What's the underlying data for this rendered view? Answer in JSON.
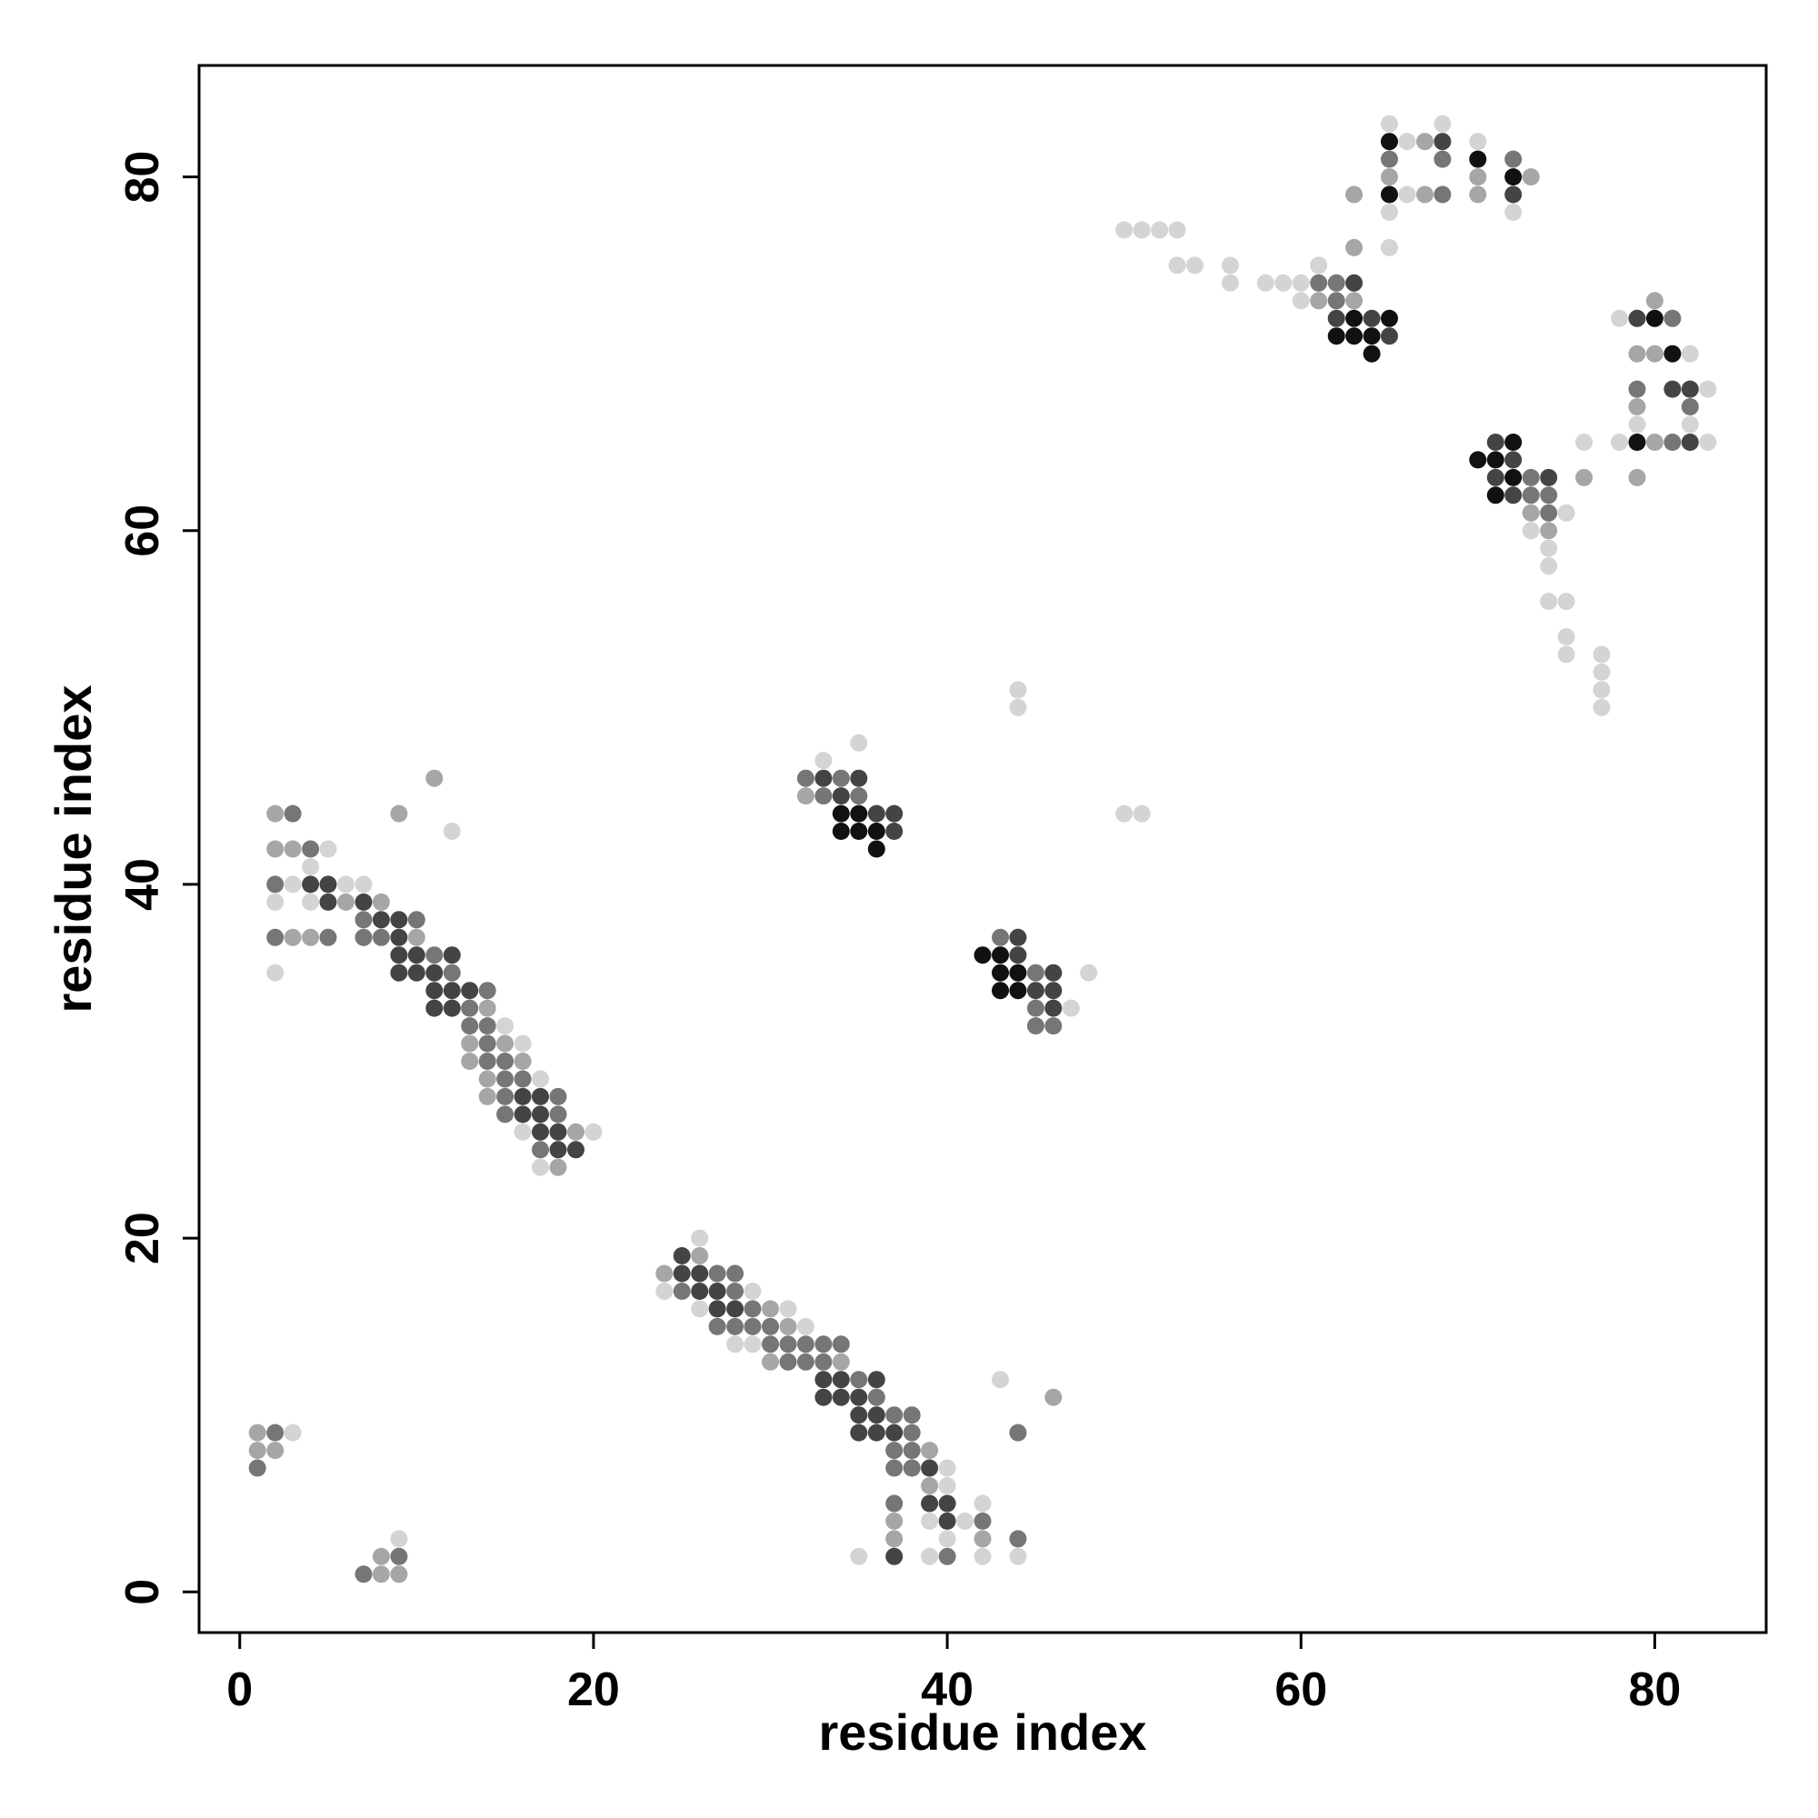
{
  "chart_data": {
    "type": "scatter",
    "title": "",
    "xlabel": "residue index",
    "ylabel": "residue index",
    "xlim": [
      -2.3,
      86.3
    ],
    "ylim": [
      -2.3,
      86.3
    ],
    "xticks": [
      0,
      20,
      40,
      60,
      80
    ],
    "yticks": [
      0,
      20,
      40,
      60,
      80
    ],
    "grid": false,
    "legend": "none",
    "marker_color": "#000000",
    "point_encoding": "[x, y, shade] where shade 1 = light gray ... 5 = black",
    "shade_colors": [
      "#d4d4d4",
      "#a6a6a6",
      "#767676",
      "#444444",
      "#111111"
    ],
    "points": [
      [
        1,
        9,
        2
      ],
      [
        2,
        9,
        3
      ],
      [
        3,
        9,
        1
      ],
      [
        1,
        8,
        2
      ],
      [
        2,
        8,
        2
      ],
      [
        1,
        7,
        3
      ],
      [
        7,
        1,
        3
      ],
      [
        8,
        1,
        2
      ],
      [
        9,
        1,
        2
      ],
      [
        8,
        2,
        2
      ],
      [
        9,
        2,
        3
      ],
      [
        9,
        3,
        1
      ],
      [
        2,
        44,
        2
      ],
      [
        3,
        44,
        3
      ],
      [
        2,
        42,
        2
      ],
      [
        3,
        42,
        2
      ],
      [
        4,
        42,
        3
      ],
      [
        5,
        42,
        1
      ],
      [
        4,
        41,
        1
      ],
      [
        2,
        40,
        3
      ],
      [
        3,
        40,
        1
      ],
      [
        4,
        40,
        4
      ],
      [
        5,
        40,
        4
      ],
      [
        6,
        40,
        1
      ],
      [
        7,
        40,
        1
      ],
      [
        2,
        39,
        1
      ],
      [
        4,
        39,
        1
      ],
      [
        5,
        39,
        4
      ],
      [
        6,
        39,
        2
      ],
      [
        7,
        39,
        4
      ],
      [
        8,
        39,
        2
      ],
      [
        7,
        38,
        3
      ],
      [
        8,
        38,
        4
      ],
      [
        9,
        38,
        4
      ],
      [
        10,
        38,
        3
      ],
      [
        2,
        37,
        3
      ],
      [
        3,
        37,
        2
      ],
      [
        4,
        37,
        2
      ],
      [
        5,
        37,
        3
      ],
      [
        7,
        37,
        3
      ],
      [
        8,
        37,
        3
      ],
      [
        9,
        37,
        4
      ],
      [
        10,
        37,
        2
      ],
      [
        9,
        36,
        4
      ],
      [
        10,
        36,
        4
      ],
      [
        11,
        36,
        3
      ],
      [
        12,
        36,
        4
      ],
      [
        2,
        35,
        1
      ],
      [
        9,
        35,
        4
      ],
      [
        10,
        35,
        4
      ],
      [
        11,
        35,
        4
      ],
      [
        12,
        35,
        3
      ],
      [
        11,
        34,
        4
      ],
      [
        12,
        34,
        4
      ],
      [
        13,
        34,
        4
      ],
      [
        14,
        34,
        3
      ],
      [
        11,
        33,
        4
      ],
      [
        12,
        33,
        4
      ],
      [
        13,
        33,
        3
      ],
      [
        14,
        33,
        2
      ],
      [
        13,
        32,
        3
      ],
      [
        14,
        32,
        3
      ],
      [
        15,
        32,
        1
      ],
      [
        13,
        31,
        2
      ],
      [
        14,
        31,
        3
      ],
      [
        15,
        31,
        2
      ],
      [
        16,
        31,
        1
      ],
      [
        13,
        30,
        2
      ],
      [
        14,
        30,
        3
      ],
      [
        15,
        30,
        3
      ],
      [
        16,
        30,
        2
      ],
      [
        14,
        29,
        2
      ],
      [
        15,
        29,
        3
      ],
      [
        16,
        29,
        3
      ],
      [
        17,
        29,
        1
      ],
      [
        14,
        28,
        2
      ],
      [
        15,
        28,
        3
      ],
      [
        16,
        28,
        4
      ],
      [
        17,
        28,
        4
      ],
      [
        18,
        28,
        3
      ],
      [
        15,
        27,
        3
      ],
      [
        16,
        27,
        4
      ],
      [
        17,
        27,
        4
      ],
      [
        18,
        27,
        3
      ],
      [
        16,
        26,
        1
      ],
      [
        17,
        26,
        4
      ],
      [
        18,
        26,
        4
      ],
      [
        19,
        26,
        2
      ],
      [
        20,
        26,
        1
      ],
      [
        17,
        25,
        3
      ],
      [
        18,
        25,
        4
      ],
      [
        19,
        25,
        4
      ],
      [
        17,
        24,
        1
      ],
      [
        18,
        24,
        2
      ],
      [
        9,
        44,
        2
      ],
      [
        11,
        46,
        2
      ],
      [
        12,
        43,
        1
      ],
      [
        24,
        18,
        2
      ],
      [
        25,
        18,
        4
      ],
      [
        26,
        18,
        4
      ],
      [
        27,
        18,
        3
      ],
      [
        28,
        18,
        3
      ],
      [
        24,
        17,
        1
      ],
      [
        25,
        17,
        3
      ],
      [
        26,
        17,
        4
      ],
      [
        27,
        17,
        4
      ],
      [
        28,
        17,
        3
      ],
      [
        29,
        17,
        1
      ],
      [
        25,
        19,
        4
      ],
      [
        26,
        19,
        2
      ],
      [
        26,
        20,
        1
      ],
      [
        26,
        16,
        1
      ],
      [
        27,
        16,
        4
      ],
      [
        28,
        16,
        4
      ],
      [
        29,
        16,
        3
      ],
      [
        30,
        16,
        2
      ],
      [
        31,
        16,
        1
      ],
      [
        27,
        15,
        3
      ],
      [
        28,
        15,
        3
      ],
      [
        29,
        15,
        3
      ],
      [
        30,
        15,
        3
      ],
      [
        31,
        15,
        2
      ],
      [
        32,
        15,
        1
      ],
      [
        28,
        14,
        1
      ],
      [
        29,
        14,
        1
      ],
      [
        30,
        14,
        3
      ],
      [
        31,
        14,
        3
      ],
      [
        32,
        14,
        3
      ],
      [
        33,
        14,
        3
      ],
      [
        34,
        14,
        3
      ],
      [
        30,
        13,
        2
      ],
      [
        31,
        13,
        3
      ],
      [
        32,
        13,
        3
      ],
      [
        33,
        13,
        3
      ],
      [
        34,
        13,
        2
      ],
      [
        33,
        12,
        4
      ],
      [
        34,
        12,
        4
      ],
      [
        35,
        12,
        3
      ],
      [
        36,
        12,
        4
      ],
      [
        33,
        11,
        4
      ],
      [
        34,
        11,
        4
      ],
      [
        35,
        11,
        4
      ],
      [
        36,
        11,
        3
      ],
      [
        35,
        10,
        4
      ],
      [
        36,
        10,
        4
      ],
      [
        37,
        10,
        3
      ],
      [
        38,
        10,
        3
      ],
      [
        35,
        9,
        4
      ],
      [
        36,
        9,
        4
      ],
      [
        37,
        9,
        4
      ],
      [
        38,
        9,
        3
      ],
      [
        37,
        8,
        3
      ],
      [
        38,
        8,
        3
      ],
      [
        39,
        8,
        2
      ],
      [
        37,
        7,
        3
      ],
      [
        38,
        7,
        3
      ],
      [
        39,
        7,
        4
      ],
      [
        40,
        7,
        1
      ],
      [
        39,
        6,
        2
      ],
      [
        40,
        6,
        1
      ],
      [
        37,
        5,
        3
      ],
      [
        39,
        5,
        4
      ],
      [
        40,
        5,
        4
      ],
      [
        42,
        5,
        1
      ],
      [
        37,
        4,
        2
      ],
      [
        39,
        4,
        1
      ],
      [
        40,
        4,
        4
      ],
      [
        41,
        4,
        1
      ],
      [
        42,
        4,
        3
      ],
      [
        37,
        3,
        2
      ],
      [
        40,
        3,
        1
      ],
      [
        42,
        3,
        2
      ],
      [
        44,
        3,
        3
      ],
      [
        35,
        2,
        1
      ],
      [
        37,
        2,
        4
      ],
      [
        39,
        2,
        1
      ],
      [
        40,
        2,
        3
      ],
      [
        42,
        2,
        1
      ],
      [
        44,
        2,
        1
      ],
      [
        43,
        12,
        1
      ],
      [
        44,
        9,
        3
      ],
      [
        46,
        11,
        2
      ],
      [
        33,
        47,
        1
      ],
      [
        35,
        48,
        1
      ],
      [
        32,
        46,
        3
      ],
      [
        33,
        46,
        4
      ],
      [
        34,
        46,
        3
      ],
      [
        35,
        46,
        4
      ],
      [
        32,
        45,
        2
      ],
      [
        33,
        45,
        3
      ],
      [
        34,
        45,
        4
      ],
      [
        35,
        45,
        3
      ],
      [
        34,
        44,
        5
      ],
      [
        35,
        44,
        5
      ],
      [
        36,
        44,
        4
      ],
      [
        37,
        44,
        4
      ],
      [
        34,
        43,
        5
      ],
      [
        35,
        43,
        5
      ],
      [
        36,
        43,
        5
      ],
      [
        37,
        43,
        4
      ],
      [
        36,
        42,
        5
      ],
      [
        43,
        37,
        3
      ],
      [
        44,
        37,
        4
      ],
      [
        42,
        36,
        5
      ],
      [
        43,
        36,
        5
      ],
      [
        44,
        36,
        4
      ],
      [
        43,
        35,
        5
      ],
      [
        44,
        35,
        5
      ],
      [
        45,
        35,
        3
      ],
      [
        46,
        35,
        4
      ],
      [
        48,
        35,
        1
      ],
      [
        43,
        34,
        5
      ],
      [
        44,
        34,
        5
      ],
      [
        45,
        34,
        4
      ],
      [
        46,
        34,
        4
      ],
      [
        45,
        33,
        3
      ],
      [
        46,
        33,
        4
      ],
      [
        47,
        33,
        1
      ],
      [
        45,
        32,
        3
      ],
      [
        46,
        32,
        3
      ],
      [
        44,
        51,
        1
      ],
      [
        44,
        50,
        1
      ],
      [
        50,
        44,
        1
      ],
      [
        51,
        44,
        1
      ],
      [
        50,
        77,
        1
      ],
      [
        51,
        77,
        1
      ],
      [
        52,
        77,
        1
      ],
      [
        53,
        77,
        1
      ],
      [
        53,
        75,
        1
      ],
      [
        54,
        75,
        1
      ],
      [
        56,
        75,
        1
      ],
      [
        56,
        74,
        1
      ],
      [
        58,
        74,
        1
      ],
      [
        59,
        74,
        1
      ],
      [
        60,
        74,
        1
      ],
      [
        61,
        75,
        1
      ],
      [
        61,
        74,
        3
      ],
      [
        62,
        74,
        3
      ],
      [
        63,
        74,
        4
      ],
      [
        60,
        73,
        1
      ],
      [
        61,
        73,
        2
      ],
      [
        62,
        73,
        3
      ],
      [
        63,
        73,
        2
      ],
      [
        62,
        72,
        4
      ],
      [
        63,
        72,
        5
      ],
      [
        64,
        72,
        4
      ],
      [
        65,
        72,
        5
      ],
      [
        62,
        71,
        5
      ],
      [
        63,
        71,
        5
      ],
      [
        64,
        71,
        5
      ],
      [
        65,
        71,
        4
      ],
      [
        64,
        70,
        5
      ],
      [
        63,
        79,
        2
      ],
      [
        63,
        76,
        2
      ],
      [
        65,
        83,
        1
      ],
      [
        65,
        82,
        5
      ],
      [
        65,
        81,
        3
      ],
      [
        65,
        80,
        2
      ],
      [
        65,
        79,
        5
      ],
      [
        65,
        78,
        1
      ],
      [
        65,
        76,
        1
      ],
      [
        66,
        82,
        1
      ],
      [
        66,
        79,
        1
      ],
      [
        67,
        82,
        2
      ],
      [
        67,
        79,
        2
      ],
      [
        68,
        83,
        1
      ],
      [
        68,
        82,
        4
      ],
      [
        68,
        81,
        3
      ],
      [
        68,
        79,
        3
      ],
      [
        70,
        82,
        1
      ],
      [
        70,
        81,
        5
      ],
      [
        70,
        80,
        2
      ],
      [
        70,
        79,
        2
      ],
      [
        72,
        81,
        3
      ],
      [
        72,
        80,
        5
      ],
      [
        72,
        79,
        4
      ],
      [
        72,
        78,
        1
      ],
      [
        73,
        80,
        2
      ],
      [
        70,
        64,
        5
      ],
      [
        71,
        65,
        4
      ],
      [
        71,
        64,
        5
      ],
      [
        71,
        63,
        4
      ],
      [
        71,
        62,
        5
      ],
      [
        72,
        65,
        5
      ],
      [
        72,
        64,
        4
      ],
      [
        72,
        63,
        5
      ],
      [
        72,
        62,
        4
      ],
      [
        73,
        63,
        3
      ],
      [
        73,
        62,
        3
      ],
      [
        73,
        61,
        2
      ],
      [
        73,
        60,
        1
      ],
      [
        74,
        63,
        4
      ],
      [
        74,
        62,
        3
      ],
      [
        74,
        61,
        3
      ],
      [
        74,
        60,
        2
      ],
      [
        74,
        59,
        1
      ],
      [
        74,
        58,
        1
      ],
      [
        75,
        61,
        1
      ],
      [
        74,
        56,
        1
      ],
      [
        75,
        56,
        1
      ],
      [
        75,
        54,
        1
      ],
      [
        75,
        53,
        1
      ],
      [
        76,
        65,
        1
      ],
      [
        76,
        63,
        2
      ],
      [
        77,
        53,
        1
      ],
      [
        77,
        52,
        1
      ],
      [
        77,
        51,
        1
      ],
      [
        77,
        50,
        1
      ],
      [
        78,
        72,
        1
      ],
      [
        78,
        65,
        1
      ],
      [
        79,
        72,
        4
      ],
      [
        79,
        70,
        2
      ],
      [
        79,
        68,
        3
      ],
      [
        79,
        67,
        2
      ],
      [
        79,
        66,
        1
      ],
      [
        79,
        65,
        5
      ],
      [
        79,
        63,
        2
      ],
      [
        80,
        73,
        2
      ],
      [
        80,
        72,
        5
      ],
      [
        80,
        70,
        2
      ],
      [
        80,
        65,
        2
      ],
      [
        81,
        72,
        3
      ],
      [
        81,
        70,
        5
      ],
      [
        81,
        68,
        4
      ],
      [
        81,
        65,
        3
      ],
      [
        82,
        70,
        1
      ],
      [
        82,
        68,
        4
      ],
      [
        82,
        67,
        3
      ],
      [
        82,
        66,
        1
      ],
      [
        82,
        65,
        4
      ],
      [
        83,
        68,
        1
      ],
      [
        83,
        65,
        1
      ]
    ]
  }
}
